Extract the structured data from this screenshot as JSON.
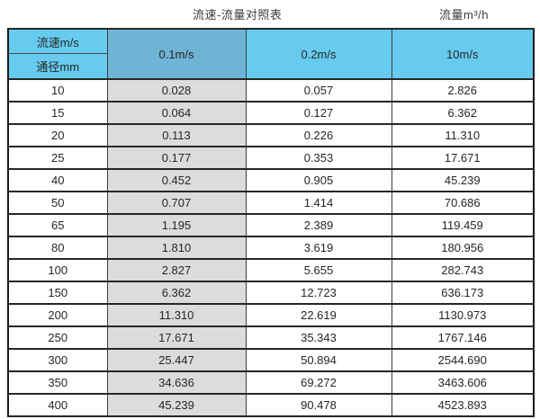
{
  "titles": {
    "main": "流速-流量对照表",
    "unit": "流量m³/h"
  },
  "header": {
    "corner_top": "流速m/s",
    "corner_bottom": "通径mm",
    "columns": [
      "0.1m/s",
      "0.2m/s",
      "10m/s"
    ]
  },
  "rows": [
    {
      "dn": "10",
      "v01": "0.028",
      "v02": "0.057",
      "v10": "2.826"
    },
    {
      "dn": "15",
      "v01": "0.064",
      "v02": "0.127",
      "v10": "6.362"
    },
    {
      "dn": "20",
      "v01": "0.113",
      "v02": "0.226",
      "v10": "11.310"
    },
    {
      "dn": "25",
      "v01": "0.177",
      "v02": "0.353",
      "v10": "17.671"
    },
    {
      "dn": "40",
      "v01": "0.452",
      "v02": "0.905",
      "v10": "45.239"
    },
    {
      "dn": "50",
      "v01": "0.707",
      "v02": "1.414",
      "v10": "70.686"
    },
    {
      "dn": "65",
      "v01": "1.195",
      "v02": "2.389",
      "v10": "119.459"
    },
    {
      "dn": "80",
      "v01": "1.810",
      "v02": "3.619",
      "v10": "180.956"
    },
    {
      "dn": "100",
      "v01": "2.827",
      "v02": "5.655",
      "v10": "282.743"
    },
    {
      "dn": "150",
      "v01": "6.362",
      "v02": "12.723",
      "v10": "636.173"
    },
    {
      "dn": "200",
      "v01": "11.310",
      "v02": "22.619",
      "v10": "1130.973"
    },
    {
      "dn": "250",
      "v01": "17.671",
      "v02": "35.343",
      "v10": "1767.146"
    },
    {
      "dn": "300",
      "v01": "25.447",
      "v02": "50.894",
      "v10": "2544.690"
    },
    {
      "dn": "350",
      "v01": "34.636",
      "v02": "69.272",
      "v10": "3463.606"
    },
    {
      "dn": "400",
      "v01": "45.239",
      "v02": "90.478",
      "v10": "4523.893"
    }
  ],
  "colors": {
    "header_blue": "#66cbee",
    "header_dark_blue": "#6fb4d5",
    "column_gray": "#dcdcdc"
  },
  "chart_data": {
    "type": "table",
    "title": "流速-流量对照表",
    "subtitle": "流量m³/h",
    "columns": [
      "通径mm",
      "0.1m/s",
      "0.2m/s",
      "10m/s"
    ],
    "rows": [
      [
        10,
        0.028,
        0.057,
        2.826
      ],
      [
        15,
        0.064,
        0.127,
        6.362
      ],
      [
        20,
        0.113,
        0.226,
        11.31
      ],
      [
        25,
        0.177,
        0.353,
        17.671
      ],
      [
        40,
        0.452,
        0.905,
        45.239
      ],
      [
        50,
        0.707,
        1.414,
        70.686
      ],
      [
        65,
        1.195,
        2.389,
        119.459
      ],
      [
        80,
        1.81,
        3.619,
        180.956
      ],
      [
        100,
        2.827,
        5.655,
        282.743
      ],
      [
        150,
        6.362,
        12.723,
        636.173
      ],
      [
        200,
        11.31,
        22.619,
        1130.973
      ],
      [
        250,
        17.671,
        35.343,
        1767.146
      ],
      [
        300,
        25.447,
        50.894,
        2544.69
      ],
      [
        350,
        34.636,
        69.272,
        3463.606
      ],
      [
        400,
        45.239,
        90.478,
        4523.893
      ]
    ]
  }
}
